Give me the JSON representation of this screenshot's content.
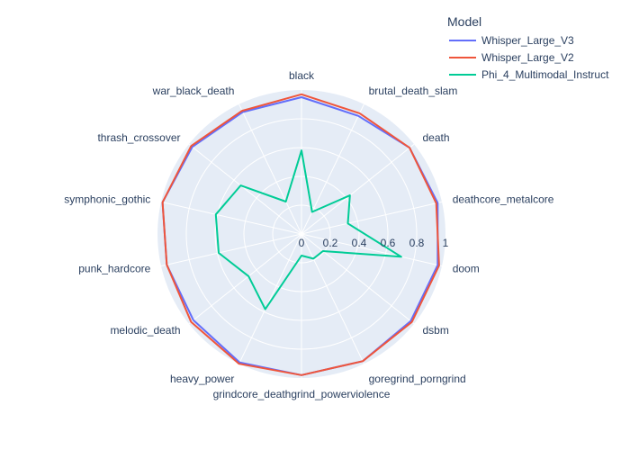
{
  "chart_data": {
    "type": "radar",
    "categories": [
      "black",
      "brutal_death_slam",
      "death",
      "deathcore_metalcore",
      "doom",
      "dsbm",
      "goregrind_porngrind",
      "grindcore_deathgrind_powerviolence",
      "heavy_power",
      "melodic_death",
      "punk_hardcore",
      "symphonic_gothic",
      "thrash_crossover",
      "war_black_death"
    ],
    "radial_ticks": [
      "0",
      "0.2",
      "0.4",
      "0.6",
      "0.8",
      "1"
    ],
    "radial_range": [
      0,
      1
    ],
    "legend": {
      "title": "Model",
      "placement": "top-right"
    },
    "series": [
      {
        "name": "Whisper_Large_V3",
        "color": "#636efa",
        "values": [
          0.95,
          0.91,
          0.96,
          0.97,
          0.97,
          0.97,
          0.98,
          0.98,
          0.99,
          0.96,
          0.96,
          0.99,
          0.97,
          0.94
        ]
      },
      {
        "name": "Whisper_Large_V2",
        "color": "#ef553b",
        "values": [
          0.97,
          0.93,
          0.96,
          0.96,
          0.98,
          0.98,
          0.98,
          0.98,
          1.0,
          0.98,
          0.96,
          0.99,
          0.98,
          0.95
        ]
      },
      {
        "name": "Phi_4_Multimodal_Instruct",
        "color": "#00cc96",
        "values": [
          0.58,
          0.17,
          0.43,
          0.33,
          0.71,
          0.19,
          0.19,
          0.15,
          0.58,
          0.47,
          0.59,
          0.61,
          0.54,
          0.25
        ]
      }
    ],
    "grid": true
  }
}
